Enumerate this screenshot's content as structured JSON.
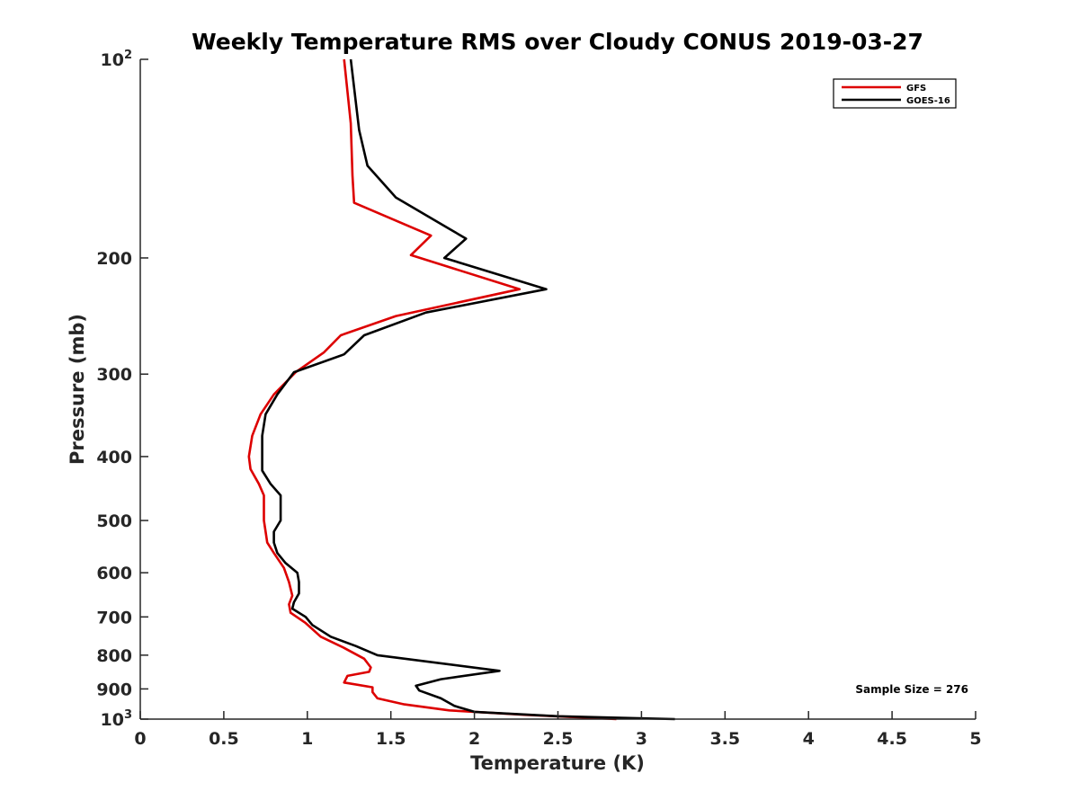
{
  "chart_data": {
    "type": "line",
    "title": "Weekly Temperature RMS over Cloudy CONUS 2019-03-27",
    "xlabel": "Temperature (K)",
    "ylabel": "Pressure (mb)",
    "xlim": [
      0,
      5
    ],
    "ylim": [
      100,
      1000
    ],
    "yscale": "log",
    "y_reversed": true,
    "x_ticks": [
      "0",
      "0.5",
      "1",
      "1.5",
      "2",
      "2.5",
      "3",
      "3.5",
      "4",
      "4.5",
      "5"
    ],
    "y_ticks": [
      {
        "value": 100,
        "label": "10",
        "sup": "2"
      },
      {
        "value": 200,
        "label": "200",
        "sup": ""
      },
      {
        "value": 300,
        "label": "300",
        "sup": ""
      },
      {
        "value": 400,
        "label": "400",
        "sup": ""
      },
      {
        "value": 500,
        "label": "500",
        "sup": ""
      },
      {
        "value": 600,
        "label": "600",
        "sup": ""
      },
      {
        "value": 700,
        "label": "700",
        "sup": ""
      },
      {
        "value": 800,
        "label": "800",
        "sup": ""
      },
      {
        "value": 900,
        "label": "900",
        "sup": ""
      },
      {
        "value": 1000,
        "label": "10",
        "sup": "3"
      }
    ],
    "legend_position": "top-right",
    "annotation": "Sample Size = 276",
    "series": [
      {
        "name": "GFS",
        "color": "#dd0000",
        "points": [
          [
            1.22,
            100
          ],
          [
            1.26,
            125
          ],
          [
            1.27,
            150
          ],
          [
            1.28,
            165
          ],
          [
            1.74,
            185
          ],
          [
            1.62,
            198
          ],
          [
            2.27,
            223
          ],
          [
            1.53,
            245
          ],
          [
            1.2,
            262
          ],
          [
            1.1,
            278
          ],
          [
            0.93,
            298
          ],
          [
            0.8,
            322
          ],
          [
            0.72,
            345
          ],
          [
            0.67,
            372
          ],
          [
            0.65,
            400
          ],
          [
            0.66,
            418
          ],
          [
            0.71,
            440
          ],
          [
            0.74,
            458
          ],
          [
            0.74,
            480
          ],
          [
            0.74,
            500
          ],
          [
            0.75,
            520
          ],
          [
            0.76,
            540
          ],
          [
            0.8,
            560
          ],
          [
            0.86,
            590
          ],
          [
            0.89,
            620
          ],
          [
            0.91,
            650
          ],
          [
            0.89,
            670
          ],
          [
            0.9,
            690
          ],
          [
            0.99,
            715
          ],
          [
            1.08,
            750
          ],
          [
            1.22,
            780
          ],
          [
            1.34,
            810
          ],
          [
            1.38,
            835
          ],
          [
            1.37,
            848
          ],
          [
            1.24,
            860
          ],
          [
            1.22,
            880
          ],
          [
            1.39,
            895
          ],
          [
            1.39,
            910
          ],
          [
            1.42,
            930
          ],
          [
            1.58,
            950
          ],
          [
            1.85,
            970
          ],
          [
            2.3,
            985
          ],
          [
            2.85,
            1000
          ]
        ]
      },
      {
        "name": "GOES-16",
        "color": "#000000",
        "points": [
          [
            1.26,
            100
          ],
          [
            1.31,
            128
          ],
          [
            1.36,
            145
          ],
          [
            1.53,
            162
          ],
          [
            1.95,
            187
          ],
          [
            1.82,
            200
          ],
          [
            2.43,
            223
          ],
          [
            1.71,
            242
          ],
          [
            1.34,
            262
          ],
          [
            1.22,
            280
          ],
          [
            0.92,
            298
          ],
          [
            0.82,
            322
          ],
          [
            0.75,
            345
          ],
          [
            0.73,
            372
          ],
          [
            0.73,
            400
          ],
          [
            0.73,
            420
          ],
          [
            0.78,
            440
          ],
          [
            0.84,
            458
          ],
          [
            0.84,
            480
          ],
          [
            0.84,
            500
          ],
          [
            0.8,
            520
          ],
          [
            0.8,
            540
          ],
          [
            0.82,
            560
          ],
          [
            0.87,
            580
          ],
          [
            0.94,
            600
          ],
          [
            0.95,
            620
          ],
          [
            0.95,
            645
          ],
          [
            0.92,
            665
          ],
          [
            0.91,
            680
          ],
          [
            0.99,
            700
          ],
          [
            1.03,
            720
          ],
          [
            1.14,
            750
          ],
          [
            1.29,
            775
          ],
          [
            1.42,
            800
          ],
          [
            2.15,
            845
          ],
          [
            1.8,
            870
          ],
          [
            1.65,
            890
          ],
          [
            1.67,
            905
          ],
          [
            1.8,
            930
          ],
          [
            1.88,
            955
          ],
          [
            2.0,
            975
          ],
          [
            2.5,
            990
          ],
          [
            3.2,
            1000
          ]
        ]
      }
    ]
  }
}
